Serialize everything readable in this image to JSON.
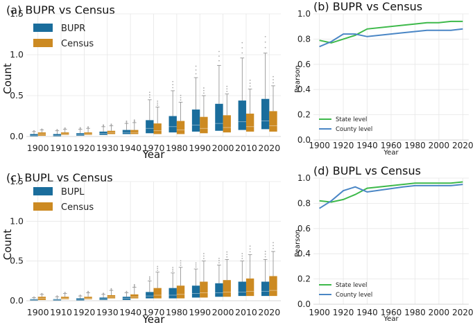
{
  "colors": {
    "blue": "#1f77b4",
    "boxBlue": "#1a6d9c",
    "boxOrange": "#cc8a22",
    "lineGreen": "#3db94a",
    "lineBlue": "#4a86c5"
  },
  "chart_data": [
    {
      "id": "a",
      "type": "box",
      "title": "(a) BUPR vs Census",
      "xlabel": "Year",
      "ylabel": "Count",
      "categories": [
        "1900",
        "1910",
        "1920",
        "1930",
        "1940",
        "1970",
        "1980",
        "1990",
        "2000",
        "2010",
        "2020"
      ],
      "ylim": [
        0,
        1.5
      ],
      "yticks": [
        "0.0",
        "0.5",
        "1.0",
        "1.5"
      ],
      "yticks_values": [
        0,
        0.5,
        1.0,
        1.5
      ],
      "legend": [
        "BUPR",
        "Census"
      ],
      "series": [
        {
          "name": "BUPR",
          "boxes": [
            {
              "q1": 0.0,
              "med": 0.01,
              "q3": 0.03,
              "wlo": 0,
              "whi": 0.06
            },
            {
              "q1": 0.0,
              "med": 0.01,
              "q3": 0.03,
              "wlo": 0,
              "whi": 0.07
            },
            {
              "q1": 0.01,
              "med": 0.02,
              "q3": 0.04,
              "wlo": 0,
              "whi": 0.09
            },
            {
              "q1": 0.02,
              "med": 0.04,
              "q3": 0.06,
              "wlo": 0,
              "whi": 0.12
            },
            {
              "q1": 0.03,
              "med": 0.05,
              "q3": 0.08,
              "wlo": 0,
              "whi": 0.16
            },
            {
              "q1": 0.04,
              "med": 0.1,
              "q3": 0.2,
              "wlo": 0,
              "whi": 0.45
            },
            {
              "q1": 0.05,
              "med": 0.12,
              "q3": 0.25,
              "wlo": 0,
              "whi": 0.56
            },
            {
              "q1": 0.06,
              "med": 0.14,
              "q3": 0.33,
              "wlo": 0,
              "whi": 0.72
            },
            {
              "q1": 0.07,
              "med": 0.16,
              "q3": 0.4,
              "wlo": 0,
              "whi": 0.87
            },
            {
              "q1": 0.08,
              "med": 0.18,
              "q3": 0.44,
              "wlo": 0,
              "whi": 0.96
            },
            {
              "q1": 0.09,
              "med": 0.19,
              "q3": 0.46,
              "wlo": 0,
              "whi": 1.02
            }
          ]
        },
        {
          "name": "Census",
          "boxes": [
            {
              "q1": 0.01,
              "med": 0.03,
              "q3": 0.05,
              "wlo": 0,
              "whi": 0.08
            },
            {
              "q1": 0.02,
              "med": 0.03,
              "q3": 0.05,
              "wlo": 0,
              "whi": 0.09
            },
            {
              "q1": 0.02,
              "med": 0.03,
              "q3": 0.05,
              "wlo": 0,
              "whi": 0.1
            },
            {
              "q1": 0.03,
              "med": 0.05,
              "q3": 0.07,
              "wlo": 0,
              "whi": 0.13
            },
            {
              "q1": 0.03,
              "med": 0.05,
              "q3": 0.08,
              "wlo": 0,
              "whi": 0.17
            },
            {
              "q1": 0.03,
              "med": 0.07,
              "q3": 0.16,
              "wlo": 0,
              "whi": 0.36
            },
            {
              "q1": 0.03,
              "med": 0.08,
              "q3": 0.19,
              "wlo": 0,
              "whi": 0.42
            },
            {
              "q1": 0.04,
              "med": 0.1,
              "q3": 0.24,
              "wlo": 0,
              "whi": 0.5
            },
            {
              "q1": 0.05,
              "med": 0.11,
              "q3": 0.26,
              "wlo": 0,
              "whi": 0.52
            },
            {
              "q1": 0.06,
              "med": 0.12,
              "q3": 0.28,
              "wlo": 0,
              "whi": 0.58
            },
            {
              "q1": 0.06,
              "med": 0.13,
              "q3": 0.31,
              "wlo": 0,
              "whi": 0.62
            }
          ]
        }
      ]
    },
    {
      "id": "b",
      "type": "line",
      "title": "(b) BUPR vs Census",
      "xlabel": "Year",
      "ylabel": "Pearson",
      "xlim": [
        1895,
        2025
      ],
      "ylim": [
        0,
        1.0
      ],
      "xticks": [
        "1900",
        "1920",
        "1940",
        "1960",
        "1980",
        "2000",
        "2020"
      ],
      "xticks_values": [
        1900,
        1920,
        1940,
        1960,
        1980,
        2000,
        2020
      ],
      "yticks": [
        "0.0",
        "0.2",
        "0.4",
        "0.6",
        "0.8",
        "1.0"
      ],
      "yticks_values": [
        0,
        0.2,
        0.4,
        0.6,
        0.8,
        1.0
      ],
      "legend_position": "lower-left",
      "series": [
        {
          "name": "State level",
          "color": "lineGreen",
          "x": [
            1900,
            1910,
            1920,
            1930,
            1940,
            1970,
            1980,
            1990,
            2000,
            2010,
            2020
          ],
          "y": [
            0.79,
            0.77,
            0.8,
            0.83,
            0.88,
            0.91,
            0.92,
            0.93,
            0.93,
            0.94,
            0.94
          ]
        },
        {
          "name": "County level",
          "color": "lineBlue",
          "x": [
            1900,
            1910,
            1920,
            1930,
            1940,
            1970,
            1980,
            1990,
            2000,
            2010,
            2020
          ],
          "y": [
            0.74,
            0.78,
            0.84,
            0.84,
            0.82,
            0.85,
            0.86,
            0.87,
            0.87,
            0.87,
            0.88
          ]
        }
      ]
    },
    {
      "id": "c",
      "type": "box",
      "title": "(c) BUPL vs Census",
      "xlabel": "Year",
      "ylabel": "Count",
      "categories": [
        "1900",
        "1910",
        "1920",
        "1930",
        "1940",
        "1970",
        "1980",
        "1990",
        "2000",
        "2010",
        "2020"
      ],
      "ylim": [
        0,
        1.5
      ],
      "yticks": [
        "0.0",
        "0.5",
        "1.0",
        "1.5"
      ],
      "yticks_values": [
        0,
        0.5,
        1.0,
        1.5
      ],
      "legend": [
        "BUPL",
        "Census"
      ],
      "series": [
        {
          "name": "BUPL",
          "boxes": [
            {
              "q1": 0.0,
              "med": 0.01,
              "q3": 0.02,
              "wlo": 0,
              "whi": 0.04
            },
            {
              "q1": 0.0,
              "med": 0.01,
              "q3": 0.02,
              "wlo": 0,
              "whi": 0.05
            },
            {
              "q1": 0.0,
              "med": 0.01,
              "q3": 0.03,
              "wlo": 0,
              "whi": 0.06
            },
            {
              "q1": 0.01,
              "med": 0.02,
              "q3": 0.04,
              "wlo": 0,
              "whi": 0.08
            },
            {
              "q1": 0.01,
              "med": 0.03,
              "q3": 0.05,
              "wlo": 0,
              "whi": 0.1
            },
            {
              "q1": 0.03,
              "med": 0.06,
              "q3": 0.11,
              "wlo": 0,
              "whi": 0.25
            },
            {
              "q1": 0.03,
              "med": 0.07,
              "q3": 0.16,
              "wlo": 0,
              "whi": 0.35
            },
            {
              "q1": 0.04,
              "med": 0.09,
              "q3": 0.19,
              "wlo": 0,
              "whi": 0.4
            },
            {
              "q1": 0.05,
              "med": 0.1,
              "q3": 0.22,
              "wlo": 0,
              "whi": 0.45
            },
            {
              "q1": 0.06,
              "med": 0.11,
              "q3": 0.24,
              "wlo": 0,
              "whi": 0.5
            },
            {
              "q1": 0.06,
              "med": 0.12,
              "q3": 0.24,
              "wlo": 0,
              "whi": 0.52
            }
          ]
        },
        {
          "name": "Census",
          "boxes": [
            {
              "q1": 0.01,
              "med": 0.03,
              "q3": 0.05,
              "wlo": 0,
              "whi": 0.08
            },
            {
              "q1": 0.02,
              "med": 0.03,
              "q3": 0.05,
              "wlo": 0,
              "whi": 0.09
            },
            {
              "q1": 0.02,
              "med": 0.03,
              "q3": 0.05,
              "wlo": 0,
              "whi": 0.1
            },
            {
              "q1": 0.03,
              "med": 0.05,
              "q3": 0.07,
              "wlo": 0,
              "whi": 0.13
            },
            {
              "q1": 0.03,
              "med": 0.05,
              "q3": 0.08,
              "wlo": 0,
              "whi": 0.17
            },
            {
              "q1": 0.03,
              "med": 0.07,
              "q3": 0.16,
              "wlo": 0,
              "whi": 0.36
            },
            {
              "q1": 0.03,
              "med": 0.08,
              "q3": 0.19,
              "wlo": 0,
              "whi": 0.42
            },
            {
              "q1": 0.04,
              "med": 0.1,
              "q3": 0.24,
              "wlo": 0,
              "whi": 0.5
            },
            {
              "q1": 0.05,
              "med": 0.11,
              "q3": 0.26,
              "wlo": 0,
              "whi": 0.52
            },
            {
              "q1": 0.06,
              "med": 0.12,
              "q3": 0.28,
              "wlo": 0,
              "whi": 0.58
            },
            {
              "q1": 0.06,
              "med": 0.13,
              "q3": 0.31,
              "wlo": 0,
              "whi": 0.62
            }
          ]
        }
      ]
    },
    {
      "id": "d",
      "type": "line",
      "title": "(d) BUPL vs Census",
      "xlabel": "Year",
      "ylabel": "Pearson",
      "xlim": [
        1895,
        2025
      ],
      "ylim": [
        0,
        1.0
      ],
      "xticks": [
        "1900",
        "1920",
        "1940",
        "1960",
        "1980",
        "2000",
        "2020"
      ],
      "xticks_values": [
        1900,
        1920,
        1940,
        1960,
        1980,
        2000,
        2020
      ],
      "yticks": [
        "0.0",
        "0.2",
        "0.4",
        "0.6",
        "0.8",
        "1.0"
      ],
      "yticks_values": [
        0,
        0.2,
        0.4,
        0.6,
        0.8,
        1.0
      ],
      "legend_position": "lower-left",
      "series": [
        {
          "name": "State level",
          "color": "lineGreen",
          "x": [
            1900,
            1910,
            1920,
            1930,
            1940,
            1970,
            1980,
            1990,
            2000,
            2010,
            2020
          ],
          "y": [
            0.82,
            0.81,
            0.83,
            0.87,
            0.92,
            0.95,
            0.96,
            0.96,
            0.96,
            0.96,
            0.97
          ]
        },
        {
          "name": "County level",
          "color": "lineBlue",
          "x": [
            1900,
            1910,
            1920,
            1930,
            1940,
            1970,
            1980,
            1990,
            2000,
            2010,
            2020
          ],
          "y": [
            0.76,
            0.82,
            0.9,
            0.93,
            0.89,
            0.93,
            0.94,
            0.94,
            0.94,
            0.94,
            0.95
          ]
        }
      ]
    }
  ]
}
